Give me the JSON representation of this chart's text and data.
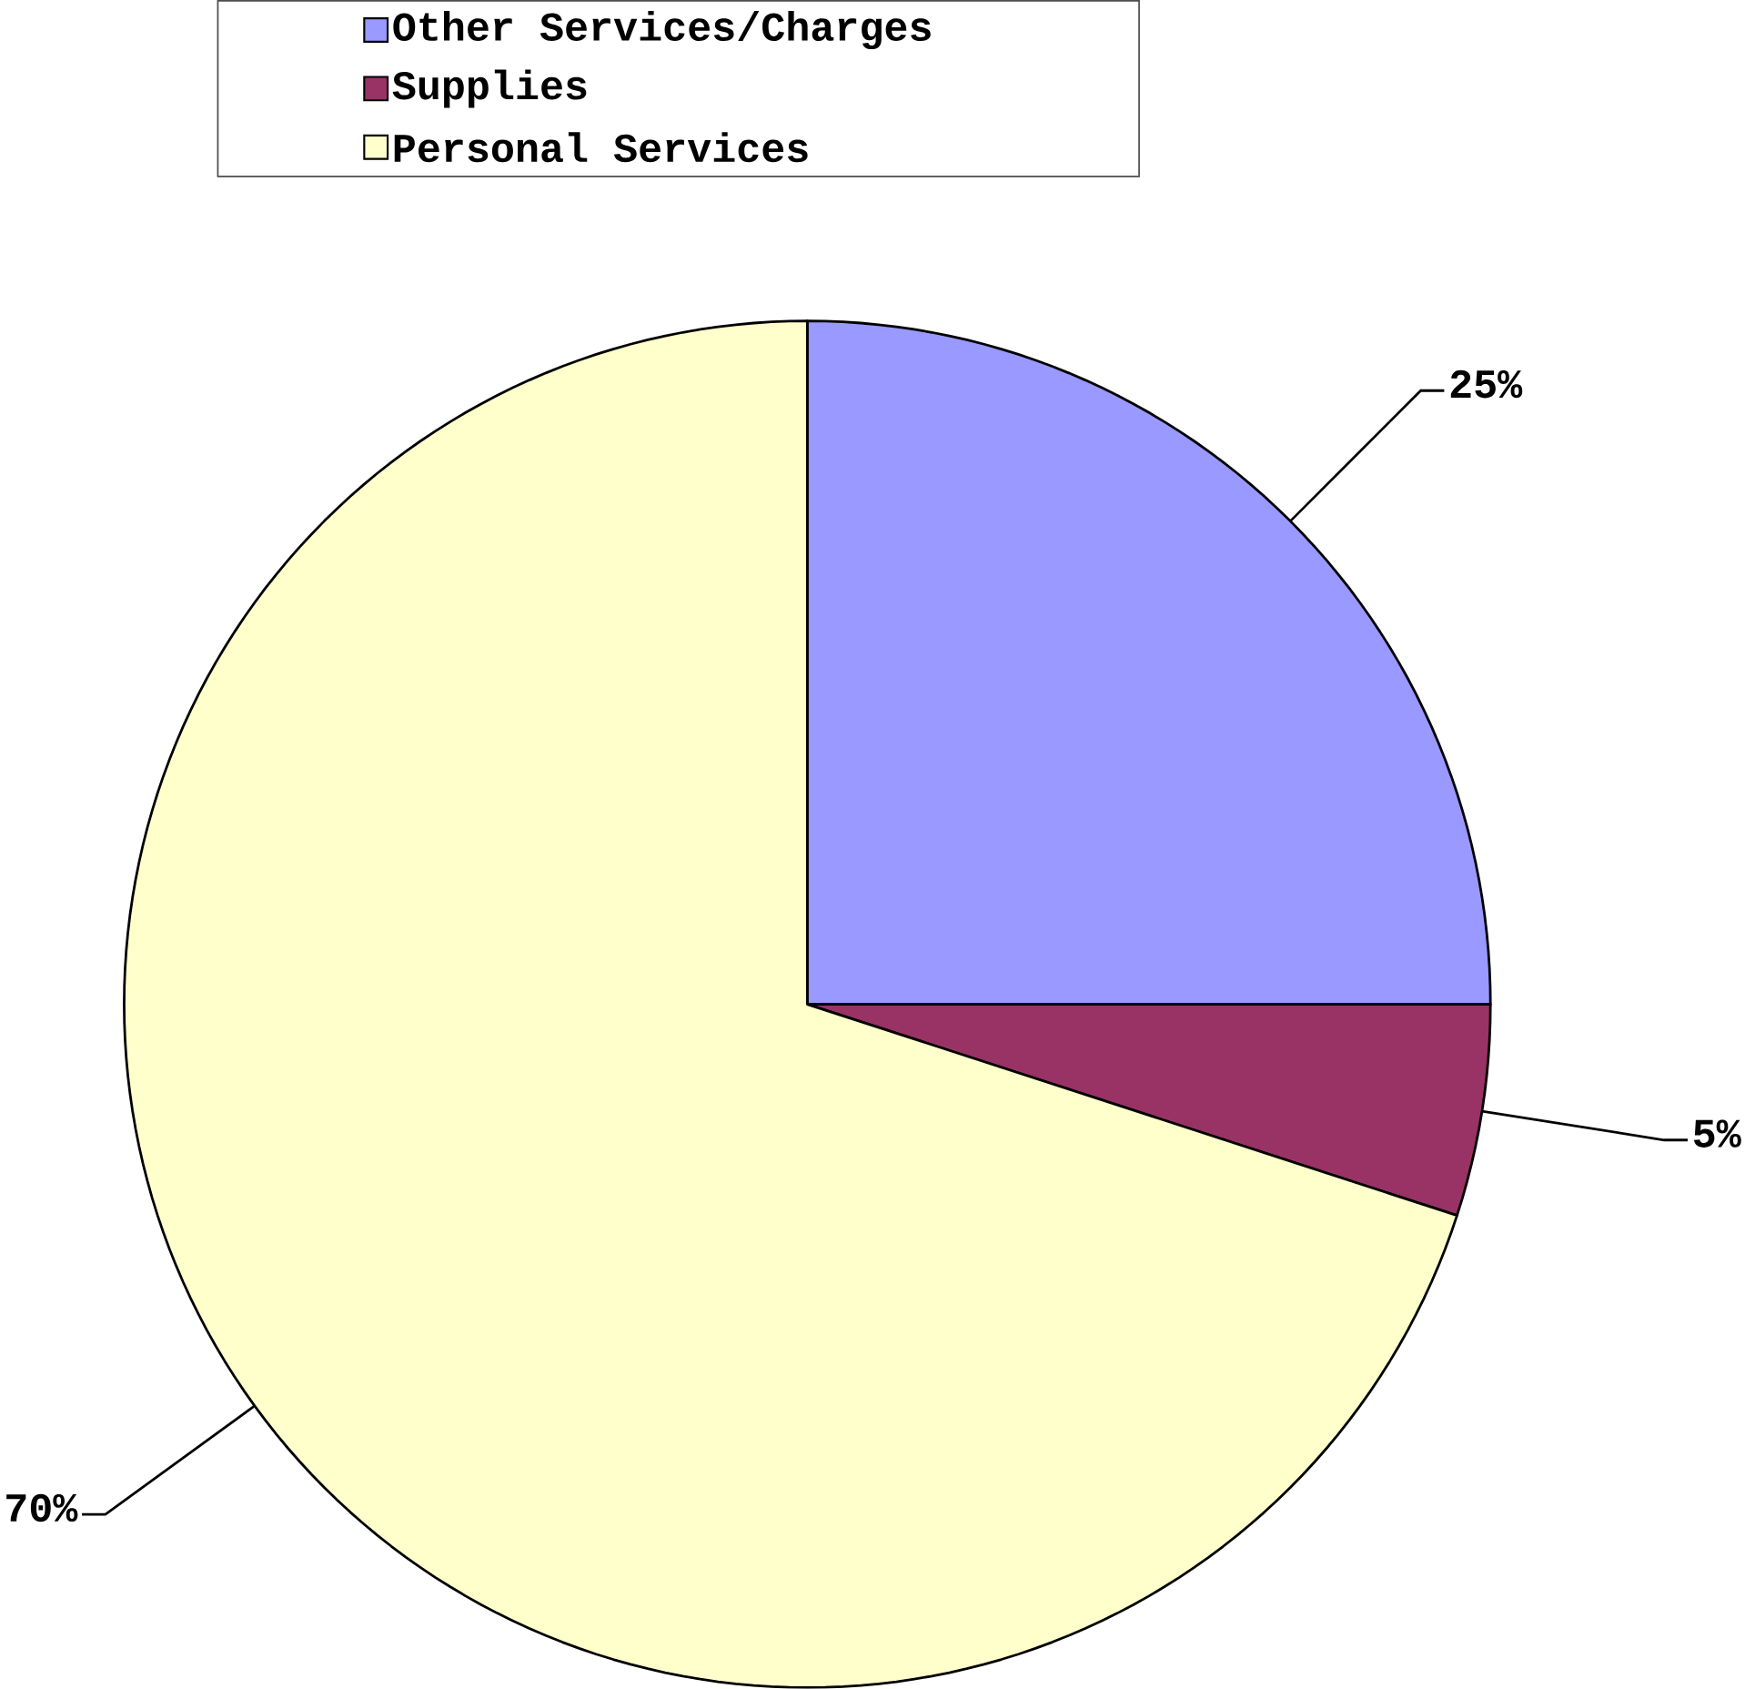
{
  "chart_data": {
    "type": "pie",
    "categories": [
      "Other Services/Charges",
      "Supplies",
      "Personal Services"
    ],
    "values": [
      25,
      5,
      70
    ],
    "colors": [
      "#9999ff",
      "#993366",
      "#ffffcc"
    ],
    "value_labels": [
      "25%",
      "5%",
      "70%"
    ],
    "legend": "top"
  }
}
